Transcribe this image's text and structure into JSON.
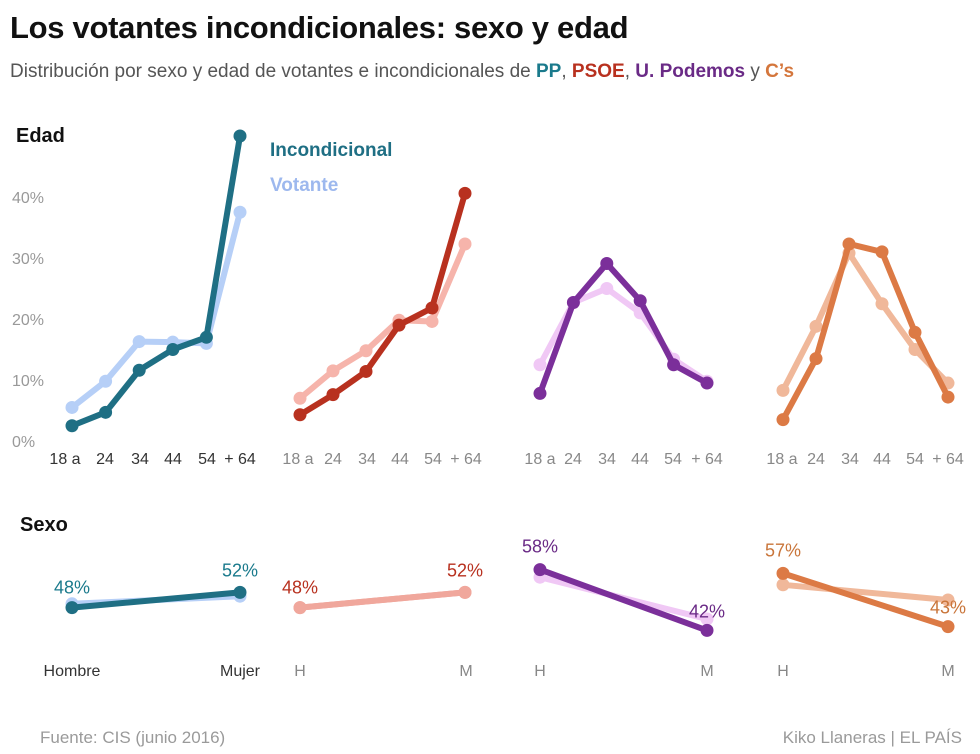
{
  "title": "Los votantes incondicionales: sexo y edad",
  "subtitle": {
    "prefix": "Distribución por sexo y edad de votantes e incondicionales de ",
    "pp": "PP",
    "sep1": ", ",
    "psoe": "PSOE",
    "sep2": ", ",
    "podemos": "U. Podemos",
    "sep3": " y ",
    "cs": "C’s"
  },
  "footer": {
    "source": "Fuente: CIS (junio 2016)",
    "credit": "Kiko Llaneras  |  EL PAÍS"
  },
  "colors": {
    "pp": {
      "incondicional": "#1f6f84",
      "votante": "#b6cff7",
      "label": "#1a7a8c"
    },
    "psoe": {
      "incondicional": "#b8311f",
      "votante": "#f6b4ab",
      "label": "#b8311f"
    },
    "podemos": {
      "incondicional": "#7b2f9a",
      "votante": "#f0c8f5",
      "label": "#6a2a86"
    },
    "cs": {
      "incondicional": "#dc7a45",
      "votante": "#f0b89a",
      "label": "#c9753a"
    }
  },
  "chart_data": [
    {
      "type": "line",
      "section": "Edad",
      "ylim": [
        0,
        50
      ],
      "yticks": [
        "0%",
        "10%",
        "20%",
        "30%",
        "40%"
      ],
      "legend": {
        "incondicional": "Incondicional",
        "votante": "Votante"
      },
      "panels": [
        {
          "party": "pp",
          "categories": [
            "18 a",
            "24",
            "34",
            "44",
            "54",
            "+ 64"
          ],
          "series": [
            {
              "name": "Votante",
              "values": [
                5.5,
                9.8,
                16.3,
                16.2,
                16.0,
                37.5
              ]
            },
            {
              "name": "Incondicional",
              "values": [
                2.5,
                4.7,
                11.6,
                15.0,
                17.0,
                50.0
              ]
            }
          ]
        },
        {
          "party": "psoe",
          "categories": [
            "18 a",
            "24",
            "34",
            "44",
            "54",
            "+ 64"
          ],
          "series": [
            {
              "name": "Votante",
              "values": [
                7.0,
                11.5,
                14.8,
                19.8,
                19.6,
                32.3
              ]
            },
            {
              "name": "Incondicional",
              "values": [
                4.3,
                7.6,
                11.4,
                19.0,
                21.8,
                40.6
              ]
            }
          ]
        },
        {
          "party": "podemos",
          "categories": [
            "18 a",
            "24",
            "34",
            "44",
            "54",
            "+ 64"
          ],
          "series": [
            {
              "name": "Votante",
              "values": [
                12.5,
                22.7,
                25.0,
                21.0,
                13.4,
                9.8
              ]
            },
            {
              "name": "Incondicional",
              "values": [
                7.8,
                22.7,
                29.1,
                23.0,
                12.5,
                9.5
              ]
            }
          ]
        },
        {
          "party": "cs",
          "categories": [
            "18 a",
            "24",
            "34",
            "44",
            "54",
            "+ 64"
          ],
          "series": [
            {
              "name": "Votante",
              "values": [
                8.3,
                18.8,
                30.8,
                22.5,
                15.0,
                9.5
              ]
            },
            {
              "name": "Incondicional",
              "values": [
                3.5,
                13.5,
                32.3,
                31.0,
                17.8,
                7.2
              ]
            }
          ]
        }
      ]
    },
    {
      "type": "line",
      "section": "Sexo",
      "ylim": [
        40,
        60
      ],
      "panels": [
        {
          "party": "pp",
          "categories": [
            "Hombre",
            "Mujer"
          ],
          "labels": [
            "48%",
            "52%"
          ],
          "series": [
            {
              "name": "Votante",
              "values": [
                49.0,
                51.0
              ]
            },
            {
              "name": "Incondicional",
              "values": [
                48.0,
                52.0
              ]
            }
          ]
        },
        {
          "party": "psoe",
          "categories": [
            "H",
            "M"
          ],
          "labels": [
            "48%",
            "52%"
          ],
          "series": [
            {
              "name": "Votante",
              "values": [
                48.0,
                52.0
              ]
            },
            {
              "name": "Incondicional",
              "values": [
                48.0,
                52.0
              ]
            }
          ]
        },
        {
          "party": "podemos",
          "categories": [
            "H",
            "M"
          ],
          "labels": [
            "58%",
            "42%"
          ],
          "series": [
            {
              "name": "Votante",
              "values": [
                56.0,
                45.0
              ]
            },
            {
              "name": "Incondicional",
              "values": [
                58.0,
                42.0
              ]
            }
          ]
        },
        {
          "party": "cs",
          "categories": [
            "H",
            "M"
          ],
          "labels": [
            "57%",
            "43%"
          ],
          "series": [
            {
              "name": "Votante",
              "values": [
                54.0,
                50.0
              ]
            },
            {
              "name": "Incondicional",
              "values": [
                57.0,
                43.0
              ]
            }
          ]
        }
      ]
    }
  ]
}
